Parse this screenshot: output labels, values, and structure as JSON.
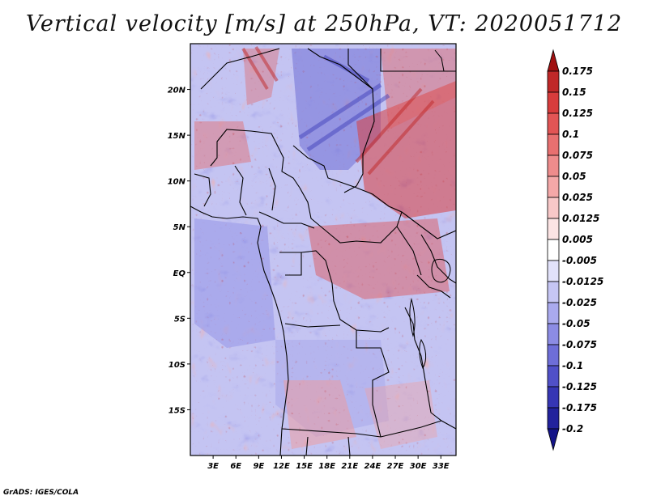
{
  "title": "Vertical velocity [m/s] at 250hPa, VT: 2020051712",
  "footer": "GrADS: IGES/COLA",
  "chart_data": {
    "type": "heatmap",
    "title": "Vertical velocity [m/s] at 250hPa, VT: 2020051712",
    "variable": "Vertical velocity",
    "units": "m/s",
    "level": "250hPa",
    "valid_time": "2020051712",
    "xlim": [
      0,
      35
    ],
    "ylim": [
      -20,
      25
    ],
    "x_ticks": [
      {
        "value": 3,
        "label": "3E"
      },
      {
        "value": 6,
        "label": "6E"
      },
      {
        "value": 9,
        "label": "9E"
      },
      {
        "value": 12,
        "label": "12E"
      },
      {
        "value": 15,
        "label": "15E"
      },
      {
        "value": 18,
        "label": "18E"
      },
      {
        "value": 21,
        "label": "21E"
      },
      {
        "value": 24,
        "label": "24E"
      },
      {
        "value": 27,
        "label": "27E"
      },
      {
        "value": 30,
        "label": "30E"
      },
      {
        "value": 33,
        "label": "33E"
      }
    ],
    "y_ticks": [
      {
        "value": 20,
        "label": "20N"
      },
      {
        "value": 15,
        "label": "15N"
      },
      {
        "value": 10,
        "label": "10N"
      },
      {
        "value": 5,
        "label": "5N"
      },
      {
        "value": 0,
        "label": "EQ"
      },
      {
        "value": -5,
        "label": "5S"
      },
      {
        "value": -10,
        "label": "10S"
      },
      {
        "value": -15,
        "label": "15S"
      }
    ],
    "colorbar": {
      "labels": [
        "0.175",
        "0.15",
        "0.125",
        "0.1",
        "0.075",
        "0.05",
        "0.025",
        "0.0125",
        "0.005",
        "-0.005",
        "-0.0125",
        "-0.025",
        "-0.05",
        "-0.075",
        "-0.1",
        "-0.125",
        "-0.175",
        "-0.2"
      ],
      "colors": [
        "#a01010",
        "#c02828",
        "#d83c3c",
        "#e25555",
        "#e87070",
        "#ee8c8c",
        "#f4a8a8",
        "#f8c8c8",
        "#fce4e4",
        "#ffffff",
        "#e2e2fa",
        "#c6c6f4",
        "#aaaaee",
        "#8c8ce4",
        "#6e6ed8",
        "#5050c8",
        "#3636b4",
        "#22229c",
        "#141488"
      ]
    }
  }
}
